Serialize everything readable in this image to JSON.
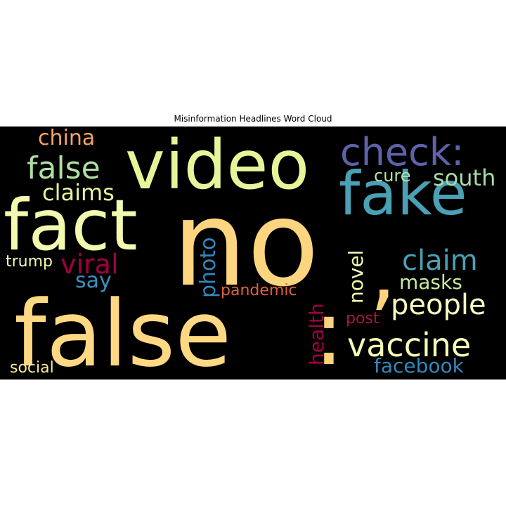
{
  "chart_data": {
    "type": "wordcloud",
    "title": "Misinformation Headlines Word Cloud",
    "background": "#000000",
    "words": [
      {
        "text": "no",
        "color": "#fdd57e"
      },
      {
        "text": "false",
        "color": "#fed883"
      },
      {
        "text": "video",
        "color": "#e7f59a"
      },
      {
        "text": "fact",
        "color": "#f3f9ae"
      },
      {
        "text": "fake",
        "color": "#4aa0b5"
      },
      {
        "text": "check:",
        "color": "#5e62a9"
      },
      {
        "text": ",",
        "color": "#fdd27c"
      },
      {
        "text": ":",
        "color": "#fdd27c"
      },
      {
        "text": "false",
        "color": "#b0dea4"
      },
      {
        "text": "vaccine",
        "color": "#f7fcb4"
      },
      {
        "text": "claim",
        "color": "#4aa0b5"
      },
      {
        "text": "people",
        "color": "#fafdbf"
      },
      {
        "text": "viral",
        "color": "#9e0142"
      },
      {
        "text": "claims",
        "color": "#e6f598"
      },
      {
        "text": "china",
        "color": "#f4a362"
      },
      {
        "text": "south",
        "color": "#a6dba4"
      },
      {
        "text": "photo",
        "color": "#3288bd"
      },
      {
        "text": "health",
        "color": "#9e0142"
      },
      {
        "text": "novel",
        "color": "#f4fbb0"
      },
      {
        "text": "masks",
        "color": "#c9e99e"
      },
      {
        "text": "facebook",
        "color": "#3288bd"
      },
      {
        "text": "cure",
        "color": "#b6e1a1"
      },
      {
        "text": "say",
        "color": "#3d8fbc"
      },
      {
        "text": "pandemic",
        "color": "#e0603f"
      },
      {
        "text": "trump",
        "color": "#f3fab0"
      },
      {
        "text": "post",
        "color": "#a9163e"
      },
      {
        "text": "social",
        "color": "#fbe89a"
      }
    ]
  }
}
